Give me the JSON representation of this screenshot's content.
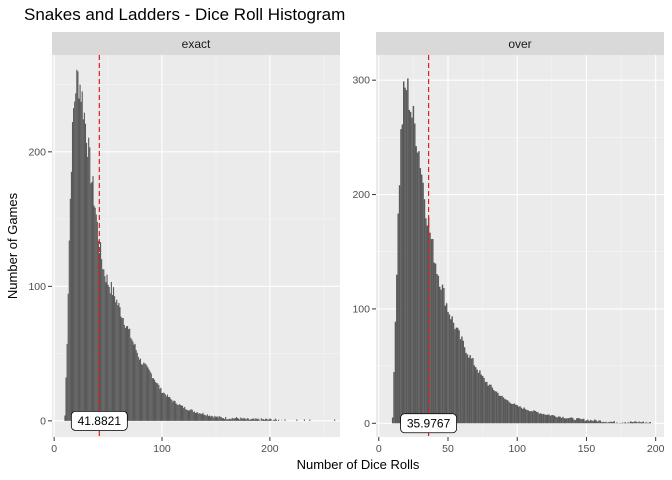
{
  "chart_data": {
    "type": "bar",
    "title": "Snakes and Ladders - Dice Roll Histogram",
    "xlabel": "Number of Dice Rolls",
    "ylabel": "Number of Games",
    "grid": true,
    "legend": "none",
    "colors": {
      "bar": "#595959",
      "panel_bg": "#ebebeb",
      "strip_bg": "#d9d9d9",
      "grid_major": "#ffffff",
      "mean_line": "#e41a1c"
    },
    "panels": [
      {
        "strip": "exact",
        "mean": 41.8821,
        "mean_label": "41.8821",
        "xlim": [
          -2,
          265
        ],
        "ylim": [
          -12,
          272
        ],
        "x_ticks": [
          0,
          100,
          200
        ],
        "y_ticks": [
          0,
          100,
          200
        ],
        "x_tick_labels": [
          "0",
          "100",
          "200"
        ],
        "y_tick_labels": [
          "0",
          "100",
          "200"
        ],
        "profile": [
          [
            9,
            0
          ],
          [
            10,
            4
          ],
          [
            12,
            60
          ],
          [
            14,
            135
          ],
          [
            16,
            195
          ],
          [
            18,
            230
          ],
          [
            20,
            250
          ],
          [
            22,
            255
          ],
          [
            24,
            250
          ],
          [
            26,
            240
          ],
          [
            30,
            215
          ],
          [
            34,
            185
          ],
          [
            38,
            160
          ],
          [
            42,
            130
          ],
          [
            46,
            112
          ],
          [
            50,
            103
          ],
          [
            55,
            95
          ],
          [
            60,
            85
          ],
          [
            65,
            75
          ],
          [
            70,
            65
          ],
          [
            75,
            55
          ],
          [
            80,
            45
          ],
          [
            90,
            35
          ],
          [
            100,
            22
          ],
          [
            110,
            15
          ],
          [
            120,
            10
          ],
          [
            130,
            7
          ],
          [
            140,
            5
          ],
          [
            150,
            3
          ],
          [
            160,
            2
          ],
          [
            170,
            2
          ],
          [
            180,
            1
          ],
          [
            200,
            1
          ],
          [
            215,
            0
          ]
        ],
        "outliers": [
          [
            225,
            1
          ],
          [
            232,
            1
          ],
          [
            237,
            1
          ],
          [
            260,
            1
          ]
        ]
      },
      {
        "strip": "over",
        "mean": 35.9767,
        "mean_label": "35.9767",
        "xlim": [
          -2,
          206
        ],
        "ylim": [
          -12,
          322
        ],
        "x_ticks": [
          0,
          50,
          100,
          150,
          200
        ],
        "y_ticks": [
          0,
          100,
          200,
          300
        ],
        "x_tick_labels": [
          "0",
          "50",
          "100",
          "150",
          "200"
        ],
        "y_tick_labels": [
          "0",
          "100",
          "200",
          "300"
        ],
        "profile": [
          [
            9,
            0
          ],
          [
            10,
            5
          ],
          [
            12,
            90
          ],
          [
            14,
            180
          ],
          [
            16,
            250
          ],
          [
            18,
            285
          ],
          [
            20,
            295
          ],
          [
            22,
            285
          ],
          [
            24,
            270
          ],
          [
            27,
            255
          ],
          [
            30,
            230
          ],
          [
            34,
            190
          ],
          [
            38,
            160
          ],
          [
            42,
            135
          ],
          [
            46,
            118
          ],
          [
            50,
            100
          ],
          [
            55,
            85
          ],
          [
            60,
            72
          ],
          [
            65,
            60
          ],
          [
            70,
            50
          ],
          [
            75,
            40
          ],
          [
            80,
            33
          ],
          [
            90,
            22
          ],
          [
            100,
            15
          ],
          [
            110,
            11
          ],
          [
            120,
            8
          ],
          [
            130,
            6
          ],
          [
            140,
            4
          ],
          [
            150,
            3
          ],
          [
            160,
            2
          ],
          [
            170,
            1
          ],
          [
            180,
            1
          ],
          [
            190,
            1
          ],
          [
            200,
            0
          ]
        ],
        "outliers": [
          [
            178,
            1
          ],
          [
            183,
            1
          ],
          [
            190,
            1
          ],
          [
            196,
            1
          ]
        ]
      }
    ]
  }
}
